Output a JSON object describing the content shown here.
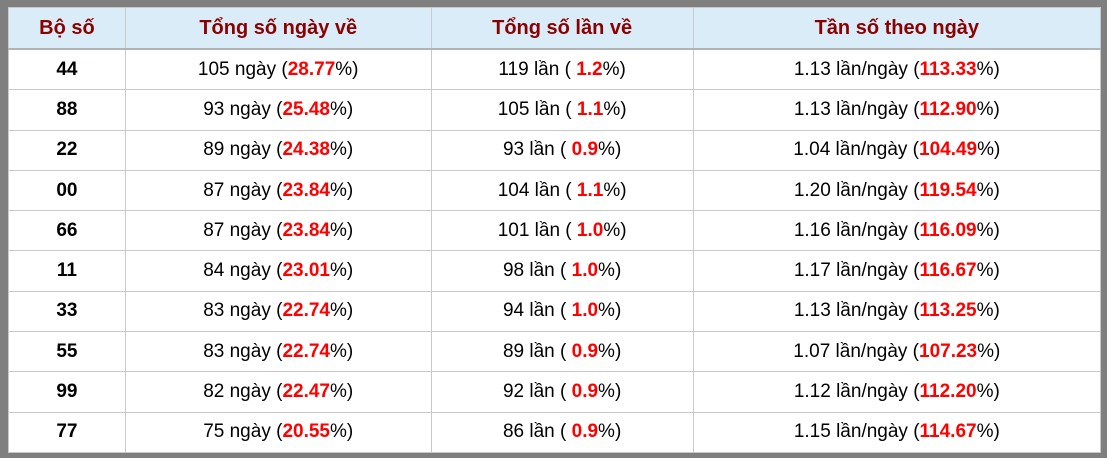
{
  "table": {
    "headers": [
      "Bộ số",
      "Tổng số ngày về",
      "Tổng số lần về",
      "Tần số theo ngày"
    ],
    "rows": [
      {
        "num": "44",
        "days": [
          "105 ngày (",
          "28.77",
          "%)"
        ],
        "times": [
          "119 lần ( ",
          "1.2",
          "%)"
        ],
        "freq": [
          "1.13 lần/ngày (",
          "113.33",
          "%)"
        ]
      },
      {
        "num": "88",
        "days": [
          "93 ngày (",
          "25.48",
          "%)"
        ],
        "times": [
          "105 lần ( ",
          "1.1",
          "%)"
        ],
        "freq": [
          "1.13 lần/ngày (",
          "112.90",
          "%)"
        ]
      },
      {
        "num": "22",
        "days": [
          "89 ngày (",
          "24.38",
          "%)"
        ],
        "times": [
          "93 lần ( ",
          "0.9",
          "%)"
        ],
        "freq": [
          "1.04 lần/ngày (",
          "104.49",
          "%)"
        ]
      },
      {
        "num": "00",
        "days": [
          "87 ngày (",
          "23.84",
          "%)"
        ],
        "times": [
          "104 lần ( ",
          "1.1",
          "%)"
        ],
        "freq": [
          "1.20 lần/ngày (",
          "119.54",
          "%)"
        ]
      },
      {
        "num": "66",
        "days": [
          "87 ngày (",
          "23.84",
          "%)"
        ],
        "times": [
          "101 lần ( ",
          "1.0",
          "%)"
        ],
        "freq": [
          "1.16 lần/ngày (",
          "116.09",
          "%)"
        ]
      },
      {
        "num": "11",
        "days": [
          "84 ngày (",
          "23.01",
          "%)"
        ],
        "times": [
          "98 lần ( ",
          "1.0",
          "%)"
        ],
        "freq": [
          "1.17 lần/ngày (",
          "116.67",
          "%)"
        ]
      },
      {
        "num": "33",
        "days": [
          "83 ngày (",
          "22.74",
          "%)"
        ],
        "times": [
          "94 lần ( ",
          "1.0",
          "%)"
        ],
        "freq": [
          "1.13 lần/ngày (",
          "113.25",
          "%)"
        ]
      },
      {
        "num": "55",
        "days": [
          "83 ngày (",
          "22.74",
          "%)"
        ],
        "times": [
          "89 lần ( ",
          "0.9",
          "%)"
        ],
        "freq": [
          "1.07 lần/ngày (",
          "107.23",
          "%)"
        ]
      },
      {
        "num": "99",
        "days": [
          "82 ngày (",
          "22.47",
          "%)"
        ],
        "times": [
          "92 lần ( ",
          "0.9",
          "%)"
        ],
        "freq": [
          "1.12 lần/ngày (",
          "112.20",
          "%)"
        ]
      },
      {
        "num": "77",
        "days": [
          "75 ngày (",
          "20.55",
          "%)"
        ],
        "times": [
          "86 lần ( ",
          "0.9",
          "%)"
        ],
        "freq": [
          "1.15 lần/ngày (",
          "114.67",
          "%)"
        ]
      }
    ]
  },
  "colors": {
    "frame_border": "#7f7f7f",
    "header_bg": "#d9ecf7",
    "header_text": "#8b0000",
    "highlight_red": "#ff0000",
    "grid_line": "#c9c9c9",
    "body_text": "#000000"
  }
}
